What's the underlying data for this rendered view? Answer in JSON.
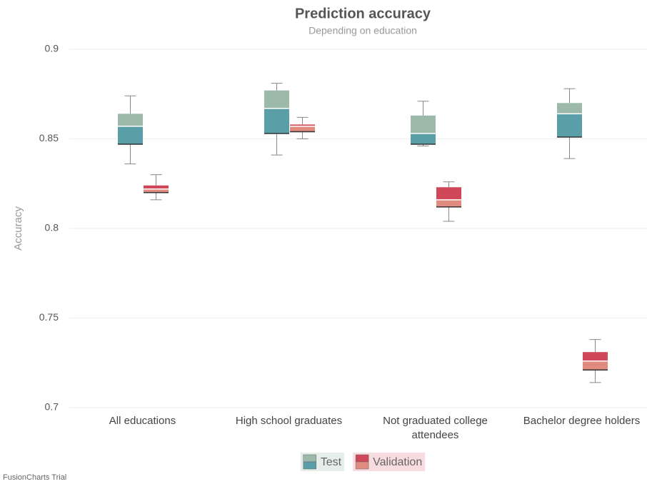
{
  "chart_data": {
    "type": "boxplot",
    "title": "Prediction accuracy",
    "subtitle": "Depending on education",
    "y_label": "Accuracy",
    "categories": [
      "All educations",
      "High school graduates",
      "Not graduated college attendees",
      "Bachelor degree holders"
    ],
    "ylim": [
      0.7,
      0.9
    ],
    "yticks": [
      0.7,
      0.75,
      0.8,
      0.85,
      0.9
    ],
    "grid": true,
    "legend": "bottom",
    "series": [
      {
        "name": "Test",
        "colors": [
          "#9cb9a9",
          "#5a9ea8"
        ],
        "max": [
          0.874,
          0.881,
          0.871,
          0.878
        ],
        "q3": [
          0.864,
          0.877,
          0.863,
          0.87
        ],
        "median": [
          0.857,
          0.867,
          0.853,
          0.864
        ],
        "q1": [
          0.847,
          0.853,
          0.847,
          0.851
        ],
        "min": [
          0.836,
          0.841,
          0.846,
          0.839
        ]
      },
      {
        "name": "Validation",
        "colors": [
          "#d0475a",
          "#e08a80"
        ],
        "max": [
          0.83,
          0.862,
          0.826,
          0.738
        ],
        "q3": [
          0.824,
          0.858,
          0.823,
          0.731
        ],
        "median": [
          0.822,
          0.857,
          0.816,
          0.726
        ],
        "q1": [
          0.82,
          0.854,
          0.812,
          0.721
        ],
        "min": [
          0.816,
          0.85,
          0.804,
          0.714
        ]
      }
    ],
    "footer": "FusionCharts Trial"
  }
}
